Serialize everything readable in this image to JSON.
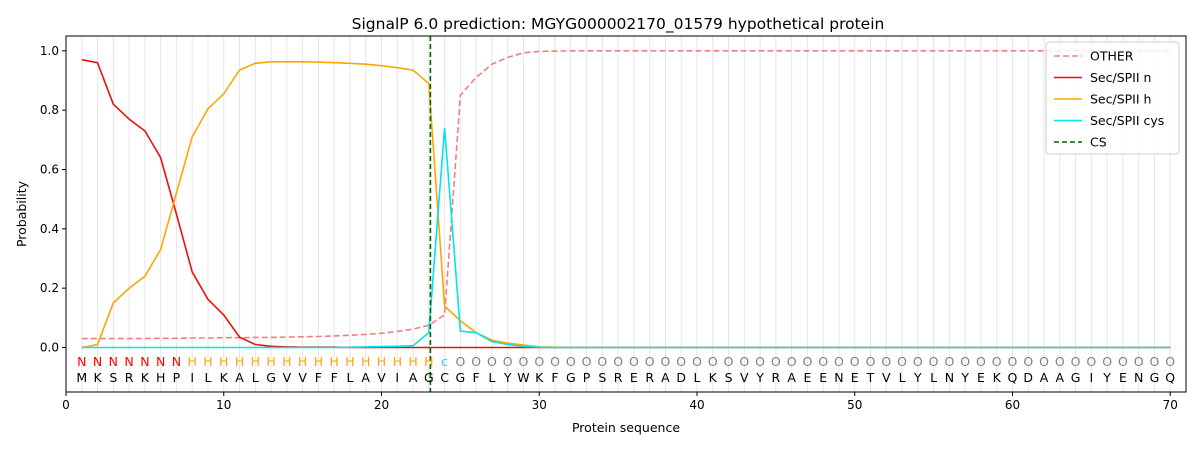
{
  "chart_data": {
    "type": "line",
    "title": "SignalP 6.0 prediction: MGYG000002170_01579 hypothetical protein",
    "xlabel": "Protein sequence",
    "ylabel": "Probability",
    "xlim": [
      0,
      71
    ],
    "ylim": [
      -0.15,
      1.05
    ],
    "x_ticks": [
      0,
      10,
      20,
      30,
      40,
      50,
      60,
      70
    ],
    "y_ticks": [
      0.0,
      0.2,
      0.4,
      0.6,
      0.8,
      1.0
    ],
    "x_tick_labels": [
      "0",
      "10",
      "20",
      "30",
      "40",
      "50",
      "60",
      "70"
    ],
    "y_tick_labels": [
      "0.0",
      "0.2",
      "0.4",
      "0.6",
      "0.8",
      "1.0"
    ],
    "grid": "vertical lines at each residue",
    "legend_position": "top-right",
    "sequence": [
      "M",
      "K",
      "S",
      "R",
      "K",
      "H",
      "P",
      "I",
      "L",
      "K",
      "A",
      "L",
      "G",
      "V",
      "V",
      "F",
      "F",
      "L",
      "A",
      "V",
      "I",
      "A",
      "G",
      "C",
      "G",
      "F",
      "L",
      "Y",
      "W",
      "K",
      "F",
      "G",
      "P",
      "S",
      "R",
      "E",
      "R",
      "A",
      "D",
      "L",
      "K",
      "S",
      "V",
      "Y",
      "R",
      "A",
      "E",
      "E",
      "N",
      "E",
      "T",
      "V",
      "L",
      "Y",
      "L",
      "N",
      "Y",
      "E",
      "K",
      "Q",
      "D",
      "A",
      "A",
      "G",
      "I",
      "Y",
      "E",
      "N",
      "G",
      "Q"
    ],
    "labels": [
      "N",
      "N",
      "N",
      "N",
      "N",
      "N",
      "N",
      "H",
      "H",
      "H",
      "H",
      "H",
      "H",
      "H",
      "H",
      "H",
      "H",
      "H",
      "H",
      "H",
      "H",
      "H",
      "H",
      "C",
      "O",
      "O",
      "O",
      "O",
      "O",
      "O",
      "O",
      "O",
      "O",
      "O",
      "O",
      "O",
      "O",
      "O",
      "O",
      "O",
      "O",
      "O",
      "O",
      "O",
      "O",
      "O",
      "O",
      "O",
      "O",
      "O",
      "O",
      "O",
      "O",
      "O",
      "O",
      "O",
      "O",
      "O",
      "O",
      "O",
      "O",
      "O",
      "O",
      "O",
      "O",
      "O",
      "O",
      "O",
      "O",
      "O"
    ],
    "label_colors": {
      "N": "#ff0000",
      "H": "#ffa500",
      "C": "#00e5e5",
      "O": "#808080"
    },
    "x": [
      1,
      2,
      3,
      4,
      5,
      6,
      7,
      8,
      9,
      10,
      11,
      12,
      13,
      14,
      15,
      16,
      17,
      18,
      19,
      20,
      21,
      22,
      23,
      24,
      25,
      26,
      27,
      28,
      29,
      30,
      31,
      32,
      33,
      34,
      35,
      36,
      37,
      38,
      39,
      40,
      41,
      42,
      43,
      44,
      45,
      46,
      47,
      48,
      49,
      50,
      51,
      52,
      53,
      54,
      55,
      56,
      57,
      58,
      59,
      60,
      61,
      62,
      63,
      64,
      65,
      66,
      67,
      68,
      69,
      70
    ],
    "series": [
      {
        "name": "OTHER",
        "color": "#f08080",
        "dash": true,
        "values": [
          0.03,
          0.03,
          0.03,
          0.03,
          0.03,
          0.031,
          0.031,
          0.032,
          0.032,
          0.033,
          0.033,
          0.034,
          0.034,
          0.035,
          0.036,
          0.037,
          0.039,
          0.041,
          0.044,
          0.048,
          0.054,
          0.062,
          0.075,
          0.11,
          0.85,
          0.91,
          0.955,
          0.978,
          0.993,
          0.998,
          0.999,
          1,
          1,
          1,
          1,
          1,
          1,
          1,
          1,
          1,
          1,
          1,
          1,
          1,
          1,
          1,
          1,
          1,
          1,
          1,
          1,
          1,
          1,
          1,
          1,
          1,
          1,
          1,
          1,
          1,
          1,
          1,
          1,
          1,
          1,
          1,
          1,
          1,
          1,
          1
        ]
      },
      {
        "name": "Sec/SPII n",
        "color": "#e8120c",
        "dash": false,
        "values": [
          0.97,
          0.96,
          0.82,
          0.77,
          0.73,
          0.64,
          0.45,
          0.255,
          0.162,
          0.11,
          0.035,
          0.01,
          0.004,
          0.002,
          0.001,
          0.001,
          0.001,
          0,
          0,
          0,
          0,
          0,
          0,
          0,
          0,
          0,
          0,
          0,
          0,
          0,
          0,
          0,
          0,
          0,
          0,
          0,
          0,
          0,
          0,
          0,
          0,
          0,
          0,
          0,
          0,
          0,
          0,
          0,
          0,
          0,
          0,
          0,
          0,
          0,
          0,
          0,
          0,
          0,
          0,
          0,
          0,
          0,
          0,
          0,
          0,
          0,
          0,
          0,
          0,
          0
        ]
      },
      {
        "name": "Sec/SPII h",
        "color": "#ffa500",
        "dash": false,
        "values": [
          0.0,
          0.01,
          0.15,
          0.2,
          0.24,
          0.33,
          0.52,
          0.71,
          0.805,
          0.855,
          0.935,
          0.958,
          0.963,
          0.963,
          0.963,
          0.962,
          0.96,
          0.958,
          0.955,
          0.95,
          0.943,
          0.935,
          0.89,
          0.14,
          0.09,
          0.05,
          0.025,
          0.015,
          0.008,
          0.002,
          0.001,
          0,
          0,
          0,
          0,
          0,
          0,
          0,
          0,
          0,
          0,
          0,
          0,
          0,
          0,
          0,
          0,
          0,
          0,
          0,
          0,
          0,
          0,
          0,
          0,
          0,
          0,
          0,
          0,
          0,
          0,
          0,
          0,
          0,
          0,
          0,
          0,
          0,
          0,
          0
        ]
      },
      {
        "name": "Sec/SPII cys",
        "color": "#00e5e5",
        "dash": false,
        "values": [
          0,
          0,
          0,
          0,
          0,
          0,
          0,
          0,
          0,
          0,
          0,
          0,
          0,
          0,
          0,
          0,
          0,
          0.001,
          0.002,
          0.003,
          0.004,
          0.006,
          0.05,
          0.74,
          0.055,
          0.05,
          0.02,
          0.01,
          0.004,
          0.001,
          0,
          0,
          0,
          0,
          0,
          0,
          0,
          0,
          0,
          0,
          0,
          0,
          0,
          0,
          0,
          0,
          0,
          0,
          0,
          0,
          0,
          0,
          0,
          0,
          0,
          0,
          0,
          0,
          0,
          0,
          0,
          0,
          0,
          0,
          0,
          0,
          0,
          0,
          0,
          0
        ]
      }
    ],
    "cs": {
      "name": "CS",
      "x": 23.1,
      "color": "#006400"
    }
  }
}
